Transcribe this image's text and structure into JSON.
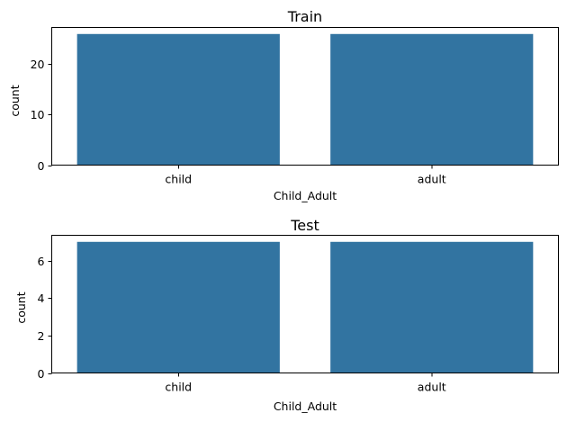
{
  "chart_data": [
    {
      "type": "bar",
      "title": "Train",
      "xlabel": "Child_Adult",
      "ylabel": "count",
      "categories": [
        "child",
        "adult"
      ],
      "values": [
        26,
        26
      ],
      "ylim": [
        0,
        27.3
      ],
      "yticks": [
        0,
        10,
        20
      ],
      "color": "#3274a1",
      "grid": false
    },
    {
      "type": "bar",
      "title": "Test",
      "xlabel": "Child_Adult",
      "ylabel": "count",
      "categories": [
        "child",
        "adult"
      ],
      "values": [
        7,
        7
      ],
      "ylim": [
        0,
        7.35
      ],
      "yticks": [
        0,
        2,
        4,
        6
      ],
      "color": "#3274a1",
      "grid": false
    }
  ]
}
